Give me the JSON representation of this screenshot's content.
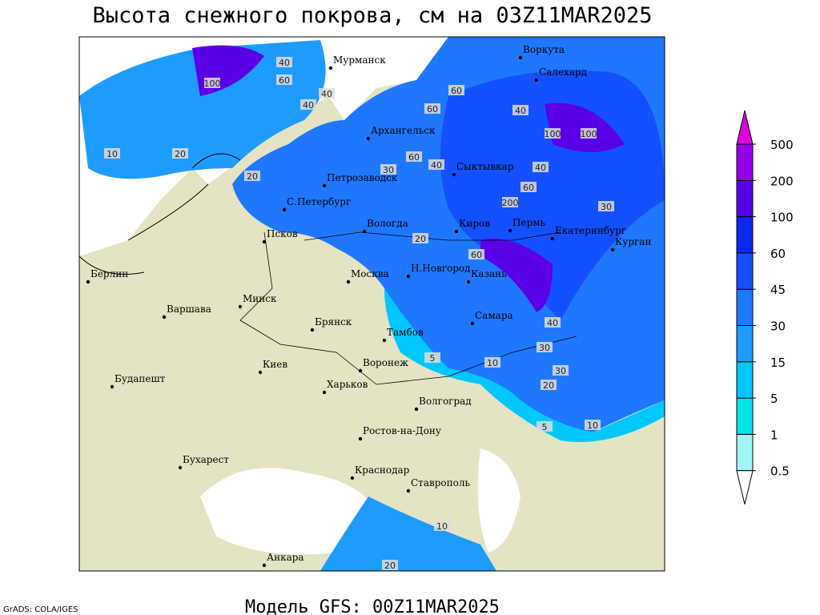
{
  "header": {
    "title": "Высота снежного покрова, см на 03Z11MAR2025"
  },
  "footer": {
    "model": "Модель GFS: 00Z11MAR2025",
    "credit": "GrADS: COLA/IGES"
  },
  "cities": [
    "Мурманск",
    "Воркута",
    "Салехард",
    "Архангельск",
    "Сыктывкар",
    "Петрозаводск",
    "С.Петербург",
    "Вологда",
    "Киров",
    "Пермь",
    "Екатеринбург",
    "Курган",
    "Псков",
    "Н.Новгород",
    "Казань",
    "Москва",
    "Берлин",
    "Минск",
    "Варшава",
    "Брянск",
    "Тамбов",
    "Самара",
    "Киев",
    "Воронеж",
    "Будапешт",
    "Харьков",
    "Волгоград",
    "Ростов-на-Дону",
    "Бухарест",
    "Краснодар",
    "Ставрополь",
    "Анкара"
  ],
  "contour_labels": [
    40,
    100,
    60,
    40,
    20,
    10,
    40,
    60,
    40,
    60,
    100,
    100,
    40,
    60,
    40,
    20,
    30,
    60,
    200,
    30,
    20,
    60,
    40,
    30,
    10,
    5,
    30,
    20,
    10,
    5,
    20,
    10
  ],
  "legend": {
    "levels": [
      0.5,
      1,
      5,
      15,
      30,
      45,
      60,
      100,
      200,
      500
    ],
    "colors": [
      "#ffffff",
      "#a0f5f5",
      "#00e6e6",
      "#00c8ff",
      "#1e9bff",
      "#1e78ff",
      "#1450ff",
      "#0a28f0",
      "#5a00e6",
      "#9600e6",
      "#e000e0"
    ]
  }
}
